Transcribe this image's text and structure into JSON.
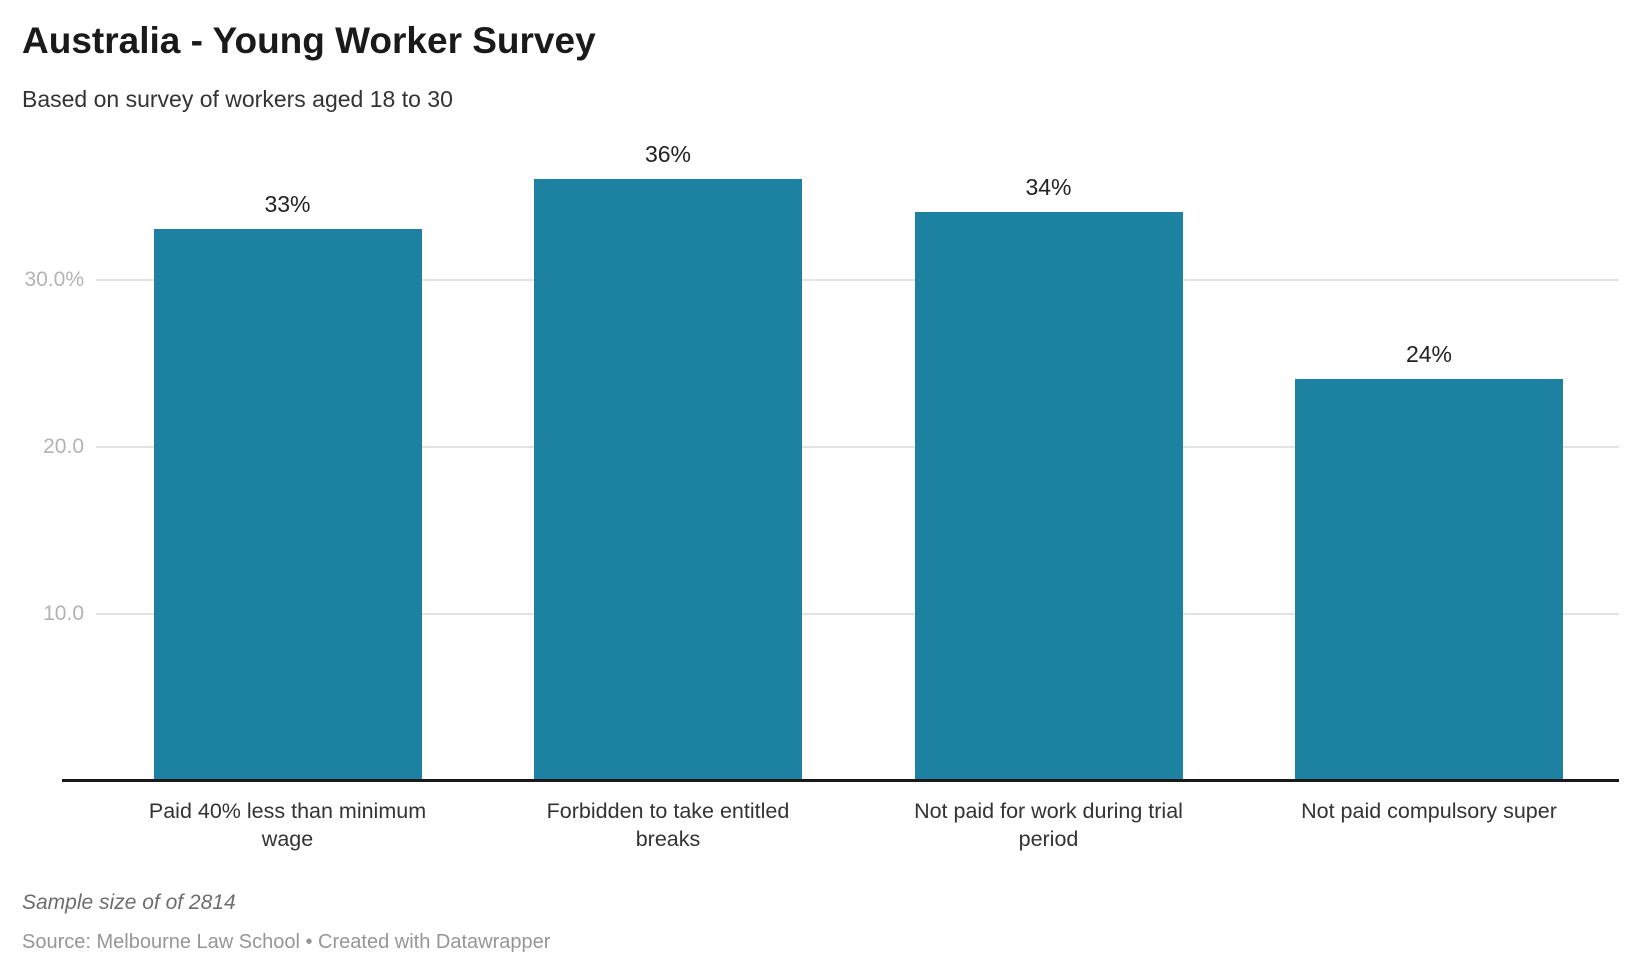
{
  "header": {
    "title": "Australia - Young Worker Survey",
    "subtitle": "Based on survey of workers aged 18 to 30"
  },
  "footer": {
    "note": "Sample size of of 2814",
    "source": "Source: Melbourne Law School • Created with Datawrapper"
  },
  "colors": {
    "bar": "#1d81a2",
    "gridline": "#e3e3e3",
    "axis_line": "#191919",
    "tick_label": "#b3b3b3",
    "title": "#1a1a1a",
    "body_text": "#333333",
    "note_text": "#6d6d6d",
    "source_text": "#969696"
  },
  "chart_data": {
    "type": "bar",
    "title": "Australia - Young Worker Survey",
    "subtitle": "Based on survey of workers aged 18 to 30",
    "categories": [
      "Paid 40% less than minimum wage",
      "Forbidden to take entitled breaks",
      "Not paid for work during trial period",
      "Not paid compulsory super"
    ],
    "category_lines": [
      [
        "Paid 40% less than minimum",
        "wage"
      ],
      [
        "Forbidden to take entitled",
        "breaks"
      ],
      [
        "Not paid for work during trial",
        "period"
      ],
      [
        "Not paid compulsory super"
      ]
    ],
    "values": [
      33,
      36,
      34,
      24
    ],
    "data_labels": [
      "33%",
      "36%",
      "34%",
      "24%"
    ],
    "y_ticks": [
      {
        "value": 10,
        "label": "10.0"
      },
      {
        "value": 20,
        "label": "20.0"
      },
      {
        "value": 30,
        "label": "30.0%"
      }
    ],
    "ylim": [
      0,
      39
    ],
    "xlabel": "",
    "ylabel": "",
    "grid": true,
    "legend": "none",
    "note": "Sample size of of 2814",
    "source": "Source: Melbourne Law School • Created with Datawrapper"
  }
}
